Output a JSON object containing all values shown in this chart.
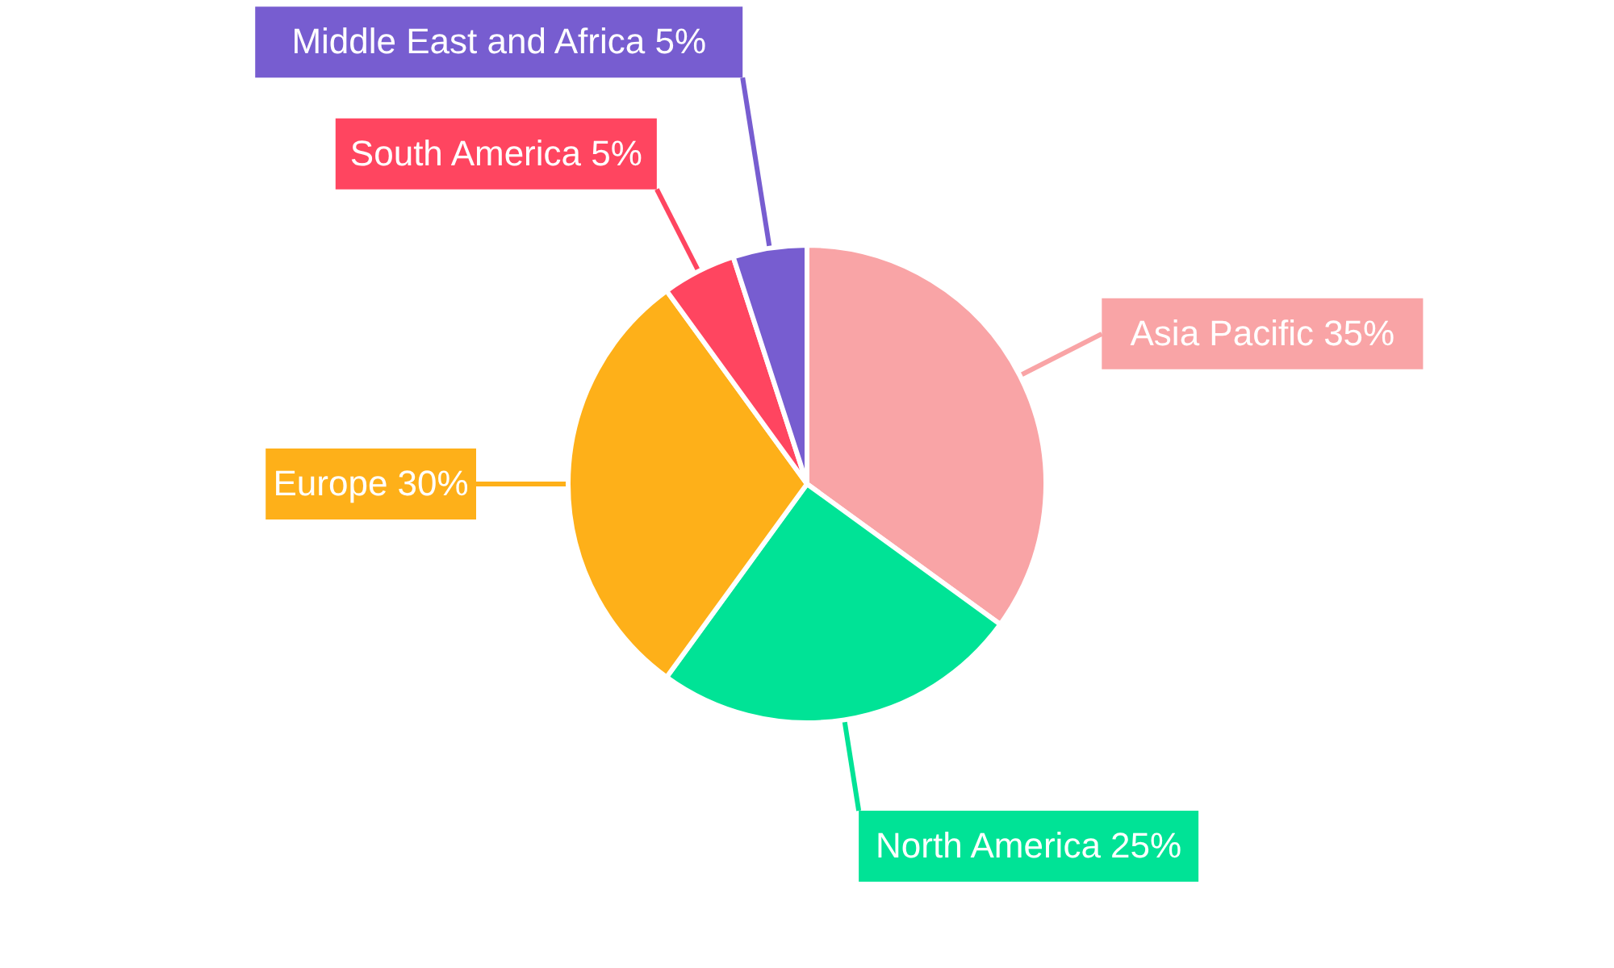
{
  "chart_data": {
    "type": "pie",
    "categories": [
      "Asia Pacific",
      "North America",
      "Europe",
      "South America",
      "Middle East and Africa"
    ],
    "values": [
      35,
      25,
      30,
      5,
      5
    ],
    "colors": [
      "#f9a4a6",
      "#00e396",
      "#feb019",
      "#ff4560",
      "#775dd0"
    ],
    "value_labels": [
      "35%",
      "25%",
      "30%",
      "5%",
      "5%"
    ]
  }
}
